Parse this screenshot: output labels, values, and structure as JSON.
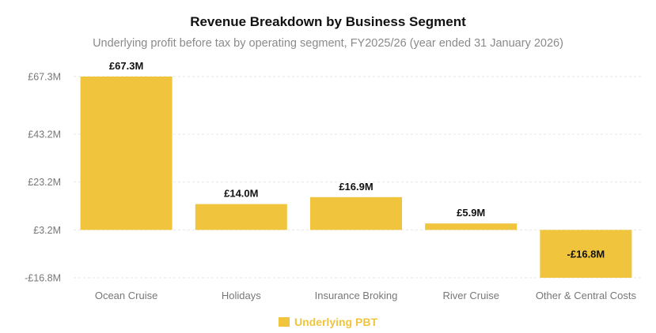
{
  "chart_data": {
    "type": "bar",
    "title": "Revenue Breakdown by Business Segment",
    "subtitle": "Underlying profit before tax by operating segment, FY2025/26 (year ended 31 January 2026)",
    "categories": [
      "Ocean Cruise",
      "Holidays",
      "Insurance Broking",
      "River Cruise",
      "Other & Central Costs"
    ],
    "series": [
      {
        "name": "Underlying PBT",
        "values": [
          67.3,
          14.0,
          16.9,
          5.9,
          -16.8
        ],
        "data_labels": [
          "£67.3M",
          "£14.0M",
          "£16.9M",
          "£5.9M",
          "-£16.8M"
        ]
      }
    ],
    "y_ticks": [
      {
        "value": 67.3,
        "label": "£67.3M"
      },
      {
        "value": 43.2,
        "label": "£43.2M"
      },
      {
        "value": 23.2,
        "label": "£23.2M"
      },
      {
        "value": 3.2,
        "label": "£3.2M"
      },
      {
        "value": -16.8,
        "label": "-£16.8M"
      }
    ],
    "ylim": [
      -16.8,
      67.3
    ],
    "bar_baseline": 3.2,
    "grid": true,
    "legend_position": "bottom",
    "colors": {
      "bar": "#F0C53D",
      "grid": "#e6e6e6",
      "tick_text": "#777777",
      "label_text": "#111111",
      "legend_text": "#F0C53D"
    }
  }
}
